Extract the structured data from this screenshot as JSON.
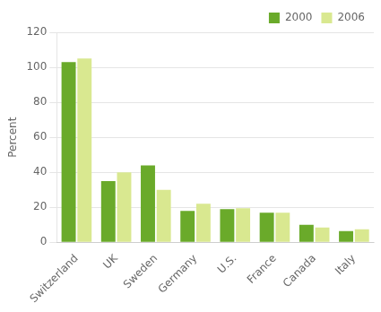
{
  "chart_data": {
    "type": "bar",
    "categories": [
      "Switzerland",
      "UK",
      "Sweden",
      "Germany",
      "U.S.",
      "France",
      "Canada",
      "Italy"
    ],
    "series": [
      {
        "name": "2000",
        "color": "#6aaa2a",
        "values": [
          103,
          35,
          44,
          18,
          19,
          17,
          10,
          6.5
        ]
      },
      {
        "name": "2006",
        "color": "#d9e890",
        "values": [
          105,
          40,
          30,
          22,
          19.5,
          17,
          8.5,
          7.5
        ]
      }
    ],
    "ylabel": "Percent",
    "ylim": [
      0,
      120
    ],
    "yticks": [
      0,
      20,
      40,
      60,
      80,
      100,
      120
    ],
    "grid": true,
    "legend": "upper right"
  }
}
